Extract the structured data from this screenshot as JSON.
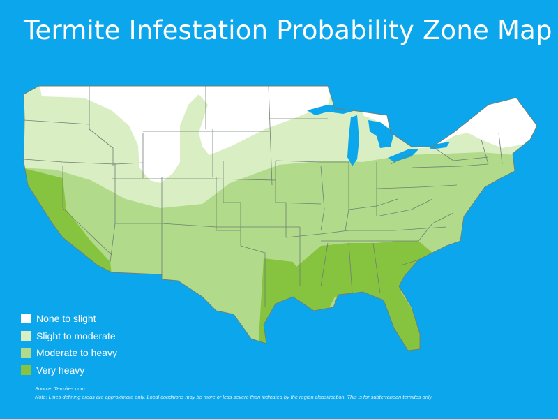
{
  "title": "Termite Infestation Probability Zone Map",
  "colors": {
    "background": "#0ba6ec",
    "none_to_slight": "#ffffff",
    "slight_to_moderate": "#d9eec3",
    "moderate_to_heavy": "#b1db8a",
    "very_heavy": "#86c440",
    "state_borders": "#6f7f73"
  },
  "legend": [
    {
      "label": "None to slight",
      "color": "#ffffff"
    },
    {
      "label": "Slight to moderate",
      "color": "#d9eec3"
    },
    {
      "label": "Moderate to heavy",
      "color": "#b1db8a"
    },
    {
      "label": "Very heavy",
      "color": "#86c440"
    }
  ],
  "source": "Source: Termites.com",
  "note": "Note: Lines defining areas are approximate only. Local conditions may be more or less severe than indicated by the region classification. This is for subterranean termites only."
}
